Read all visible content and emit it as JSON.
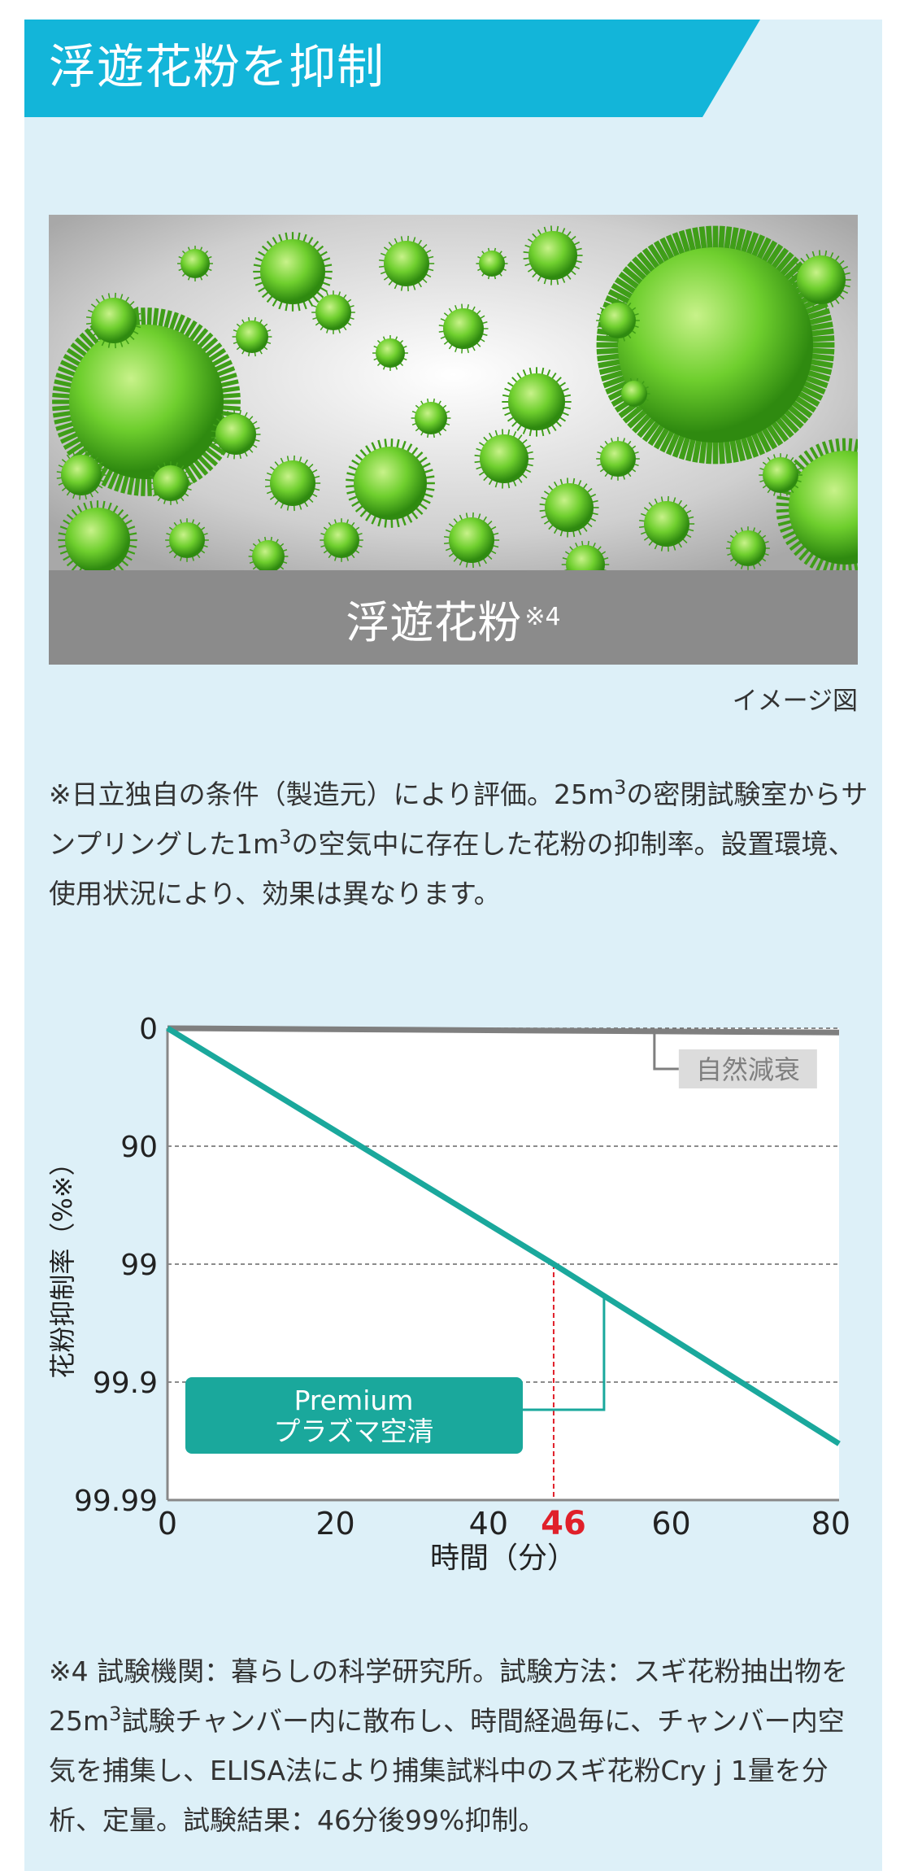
{
  "header": {
    "title": "浮遊花粉を抑制"
  },
  "image": {
    "caption": "浮遊花粉",
    "caption_note": "※4",
    "image_note": "イメージ図",
    "icon": "pollen-illustration"
  },
  "note1": {
    "part1": "※日立独自の条件（製造元）により評価。25m",
    "sup1": "3",
    "part2": "の密閉試験室からサンプリングした1m",
    "sup2": "3",
    "part3": "の空気中に存在した花粉の抑制率。設置環境、使用状況により、効果は異なります。"
  },
  "chart_data": {
    "type": "line",
    "title": "",
    "xlabel": "時間（分）",
    "ylabel": "花粉抑制率（%※）",
    "x_ticks": [
      0,
      20,
      40,
      60,
      80
    ],
    "y_ticks": [
      "0",
      "90",
      "99",
      "99.9",
      "99.99"
    ],
    "y_scale": "log-reduction",
    "xlim": [
      0,
      80
    ],
    "grid": "horizontal-dashed",
    "highlight_x": {
      "value": 46,
      "label": "46",
      "color": "#e0202a"
    },
    "series": [
      {
        "name": "Premium プラズマ空清",
        "label_line1": "Premium",
        "label_line2": "プラズマ空清",
        "color": "#1aa89c",
        "x": [
          0,
          46,
          80
        ],
        "y": [
          0,
          99,
          99.97
        ]
      },
      {
        "name": "自然減衰",
        "color": "#7f7f7f",
        "x": [
          0,
          80
        ],
        "y": [
          0,
          8
        ]
      }
    ]
  },
  "note2": {
    "part1": "※4 試験機関：暮らしの科学研究所。試験方法：スギ花粉抽出物を25m",
    "sup1": "3",
    "part2": "試験チャンバー内に散布し、時間経過毎に、チャンバー内空気を捕集し、ELISA法により捕集試料中のスギ花粉Cry j 1量を分析、定量。試験結果：46分後99%抑制。"
  }
}
